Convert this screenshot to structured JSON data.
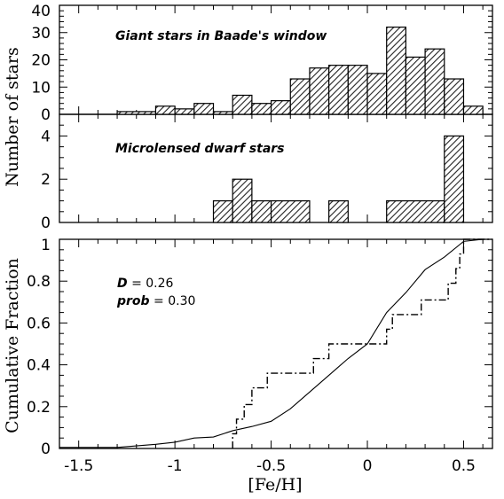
{
  "chart_data": [
    {
      "type": "bar",
      "title": "Giant stars in Baade's window",
      "ylabel": "Number of stars",
      "xlim": [
        -1.6,
        0.65
      ],
      "ylim": [
        0,
        40
      ],
      "yticks": [
        "0",
        "10",
        "20",
        "30",
        "40"
      ],
      "bin_edges": [
        -1.3,
        -1.1,
        -1.0,
        -0.9,
        -0.8,
        -0.7,
        -0.6,
        -0.5,
        -0.4,
        -0.3,
        -0.2,
        -0.1,
        0.0,
        0.1,
        0.2,
        0.3,
        0.4,
        0.5,
        0.6
      ],
      "values": [
        1,
        3,
        2,
        4,
        1,
        7,
        4,
        5,
        13,
        17,
        18,
        18,
        15,
        32,
        21,
        24,
        13,
        3
      ],
      "fill": "#333333"
    },
    {
      "type": "bar",
      "title": "Microlensed dwarf stars",
      "xlim": [
        -1.6,
        0.65
      ],
      "ylim": [
        0,
        5
      ],
      "yticks": [
        "0",
        "2",
        "4"
      ],
      "bin_edges": [
        -0.8,
        -0.7,
        -0.6,
        -0.5,
        -0.3,
        -0.2,
        -0.1,
        0.1,
        0.4,
        0.5
      ],
      "values": [
        1,
        2,
        1,
        1,
        0,
        1,
        0,
        1,
        4
      ],
      "fill": "#333333"
    },
    {
      "type": "line",
      "ylabel": "Cumulative Fraction",
      "xlabel": "[Fe/H]",
      "xlim": [
        -1.6,
        0.65
      ],
      "ylim": [
        0,
        1
      ],
      "xticks": [
        "-1.5",
        "-1",
        "-0.5",
        "0",
        "0.5"
      ],
      "yticks": [
        "0",
        "0.2",
        "0.4",
        "0.6",
        "0.8",
        "1"
      ],
      "annotations": [
        {
          "var": "D",
          "value": "0.26"
        },
        {
          "var": "prob",
          "value": "0.30"
        }
      ],
      "series": [
        {
          "style": "solid",
          "x": [
            -1.3,
            -1.1,
            -1.0,
            -0.9,
            -0.8,
            -0.7,
            -0.6,
            -0.5,
            -0.4,
            -0.3,
            -0.2,
            -0.1,
            0.0,
            0.1,
            0.2,
            0.3,
            0.4,
            0.5,
            0.6
          ],
          "y": [
            0.005,
            0.02,
            0.03,
            0.05,
            0.055,
            0.085,
            0.105,
            0.13,
            0.19,
            0.27,
            0.35,
            0.43,
            0.5,
            0.65,
            0.745,
            0.855,
            0.915,
            0.99,
            1.0
          ]
        },
        {
          "style": "dashdot",
          "x": [
            -0.7,
            -0.7,
            -0.68,
            -0.64,
            -0.6,
            -0.52,
            -0.3,
            -0.28,
            -0.2,
            0.0,
            0.1,
            0.13,
            0.25,
            0.28,
            0.42,
            0.46,
            0.48,
            0.5
          ],
          "y": [
            0.0,
            0.07,
            0.14,
            0.21,
            0.29,
            0.36,
            0.36,
            0.43,
            0.5,
            0.5,
            0.57,
            0.64,
            0.64,
            0.71,
            0.79,
            0.86,
            0.93,
            1.0
          ]
        }
      ]
    }
  ]
}
